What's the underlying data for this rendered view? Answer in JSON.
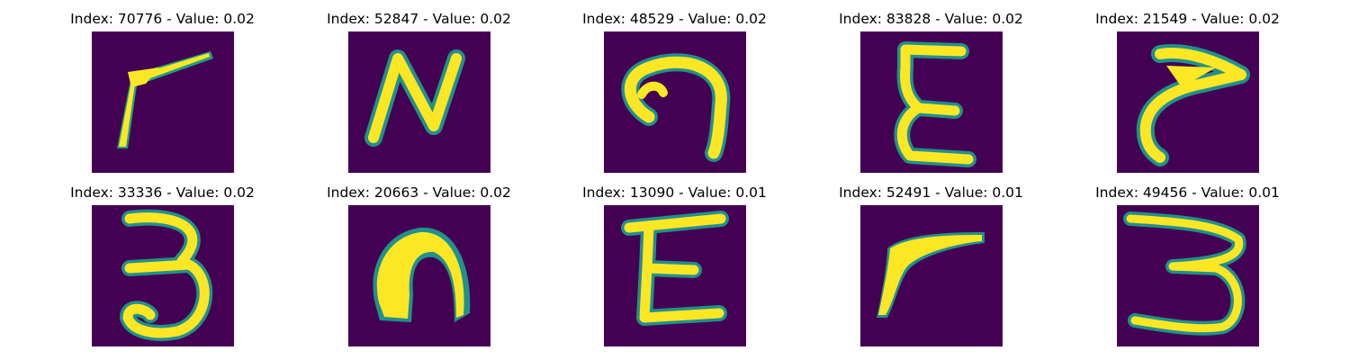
{
  "figure": {
    "colormap": "viridis",
    "background_color": "#440154",
    "stroke_color": "#fde725",
    "edge_color": "#21918c",
    "panels": [
      {
        "title": "Index: 70776 - Value: 0.02",
        "glyph": "seven-like-stroke-icon"
      },
      {
        "title": "Index: 52847 - Value: 0.02",
        "glyph": "letter-n-icon"
      },
      {
        "title": "Index: 48529 - Value: 0.02",
        "glyph": "hook-shape-icon"
      },
      {
        "title": "Index: 83828 - Value: 0.02",
        "glyph": "letter-e-icon"
      },
      {
        "title": "Index: 21549 - Value: 0.02",
        "glyph": "hook-stroke-icon"
      },
      {
        "title": "Index: 33336 - Value: 0.02",
        "glyph": "digit-3-icon"
      },
      {
        "title": "Index: 20663 - Value: 0.02",
        "glyph": "blob-arch-icon"
      },
      {
        "title": "Index: 13090 - Value: 0.01",
        "glyph": "letter-e-icon"
      },
      {
        "title": "Index: 52491 - Value: 0.01",
        "glyph": "seven-like-stroke-icon"
      },
      {
        "title": "Index: 49456 - Value: 0.01",
        "glyph": "digit-3-icon"
      }
    ]
  }
}
